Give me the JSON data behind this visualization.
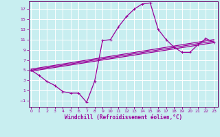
{
  "title": "",
  "xlabel": "Windchill (Refroidissement éolien,°C)",
  "background_color": "#c8eef0",
  "grid_color": "#aadddd",
  "line_color": "#990099",
  "spine_color": "#660066",
  "x_ticks": [
    0,
    1,
    2,
    3,
    4,
    5,
    6,
    7,
    8,
    9,
    10,
    11,
    12,
    13,
    14,
    15,
    16,
    17,
    18,
    19,
    20,
    21,
    22,
    23
  ],
  "y_ticks": [
    -1,
    1,
    3,
    5,
    7,
    9,
    11,
    13,
    15,
    17
  ],
  "xlim": [
    -0.3,
    23.5
  ],
  "ylim": [
    -2.2,
    18.5
  ],
  "main_line": {
    "x": [
      0,
      1,
      2,
      3,
      4,
      5,
      6,
      7,
      8,
      9,
      10,
      11,
      12,
      13,
      14,
      15,
      16,
      17,
      18,
      19,
      20,
      21,
      22,
      23
    ],
    "y": [
      5,
      4,
      2.8,
      2,
      0.8,
      0.5,
      0.5,
      -1.3,
      2.8,
      10.8,
      11,
      13.5,
      15.5,
      17,
      18,
      18.2,
      13,
      11,
      9.5,
      8.5,
      8.5,
      10,
      11.2,
      10.5
    ]
  },
  "line2": {
    "x": [
      0,
      23
    ],
    "y": [
      4.8,
      10.4
    ]
  },
  "line3": {
    "x": [
      0,
      23
    ],
    "y": [
      5.0,
      10.7
    ]
  },
  "line4": {
    "x": [
      0,
      23
    ],
    "y": [
      5.2,
      11.0
    ]
  }
}
